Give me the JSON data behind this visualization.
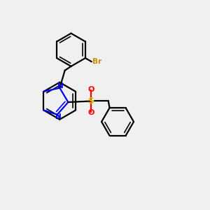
{
  "bg_color": "#f0f0f0",
  "bond_color": "#000000",
  "n_color": "#0000ff",
  "o_color": "#ff0000",
  "s_color": "#cccc00",
  "br_color": "#cc8800",
  "figsize": [
    3.0,
    3.0
  ],
  "dpi": 100,
  "xlim": [
    0,
    10
  ],
  "ylim": [
    0,
    10
  ]
}
